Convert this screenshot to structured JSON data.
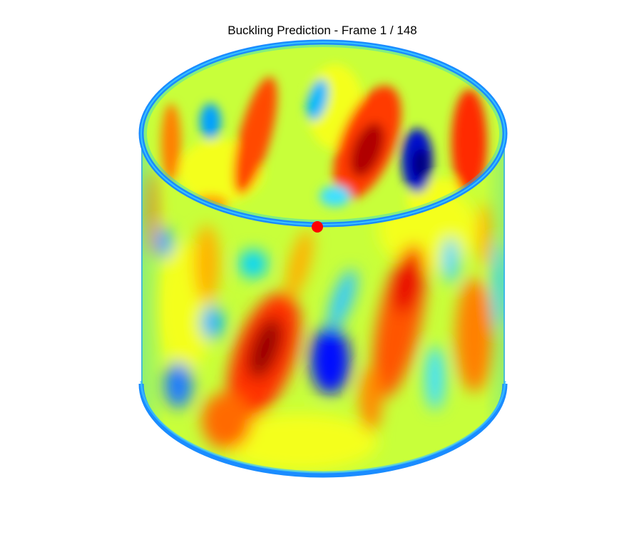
{
  "title": "Buckling Prediction - Frame 1 / 148",
  "chart_data": {
    "type": "heatmap",
    "title": "Buckling Prediction - Frame 1 / 148",
    "frame": {
      "current": 1,
      "total": 148
    },
    "surface": "cylinder",
    "colormap": "jet",
    "colormap_stops": [
      "#00007f",
      "#0000ff",
      "#007fff",
      "#00ffff",
      "#7fff7f",
      "#ffff00",
      "#ff7f00",
      "#ff0000",
      "#7f0000"
    ],
    "marker": {
      "color": "#ff0000",
      "shape": "circle"
    },
    "grid": false,
    "axes_visible": false
  },
  "colors": {
    "background": "#ffffff",
    "rim": "#1a8cff",
    "marker": "#ff0000"
  }
}
